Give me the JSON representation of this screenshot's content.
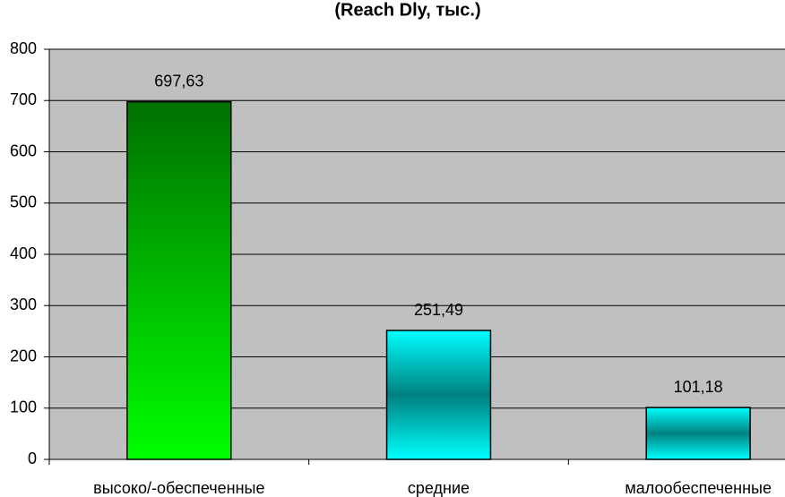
{
  "chart_data": {
    "type": "bar",
    "title": "(Reach Dly, тыс.)",
    "categories": [
      "высоко/-обеспеченные",
      "средние",
      "малообеспеченные"
    ],
    "values": [
      697.63,
      251.49,
      101.18
    ],
    "value_labels": [
      "697,63",
      "251,49",
      "101,18"
    ],
    "colors": [
      [
        "#007000",
        "#00ff00"
      ],
      [
        "#00ffff",
        "#008080",
        "#00ffff"
      ],
      [
        "#00ffff",
        "#008080",
        "#00ffff"
      ]
    ],
    "ylim": [
      0,
      800
    ],
    "yticks": [
      0,
      100,
      200,
      300,
      400,
      500,
      600,
      700,
      800
    ],
    "grid": true
  }
}
